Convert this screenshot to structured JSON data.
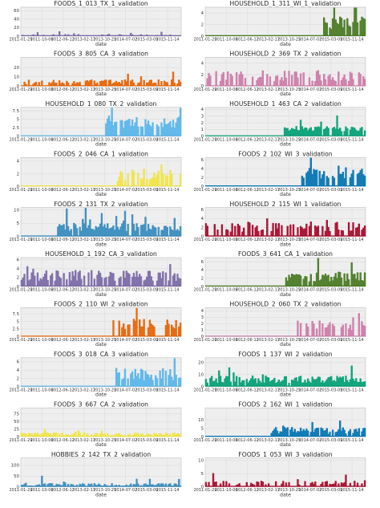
{
  "chart_data": [
    {
      "type": "bar",
      "title": "FOODS_1_013_TX_1_validation",
      "xlabel": "date",
      "ylabel": "",
      "color": "#7a68a6",
      "start": 0.0,
      "base": 1.0,
      "spread": 3.0,
      "peak": 8.0,
      "dens": 0.5,
      "yticks": [
        0,
        20,
        40,
        60
      ],
      "ylim": [
        0,
        68
      ]
    },
    {
      "type": "bar",
      "title": "HOUSEHOLD_1_311_WI_1_validation",
      "xlabel": "date",
      "ylabel": "",
      "color": "#467821",
      "start": 0.72,
      "base": 2.0,
      "spread": 1.5,
      "peak": 2.2,
      "dens": 0.85,
      "yticks": [
        0,
        2,
        4
      ],
      "ylim": [
        0,
        5
      ]
    },
    {
      "type": "bar",
      "title": "FOODS_3_805_CA_3_validation",
      "xlabel": "date",
      "ylabel": "",
      "color": "#e66101",
      "start": 0.0,
      "base": 4.0,
      "spread": 3.0,
      "peak": 3.0,
      "dens": 0.7,
      "yticks": [
        0,
        10,
        20
      ],
      "ylim": [
        0,
        31
      ]
    },
    {
      "type": "bar",
      "title": "HOUSEHOLD_2_369_TX_2_validation",
      "xlabel": "date",
      "ylabel": "",
      "color": "#cc79a7",
      "start": 0.0,
      "base": 1.5,
      "spread": 1.2,
      "peak": 1.8,
      "dens": 0.6,
      "yticks": [
        0,
        2,
        4
      ],
      "ylim": [
        0,
        5
      ]
    },
    {
      "type": "bar",
      "title": "HOUSEHOLD_1_080_TX_2_validation",
      "xlabel": "date",
      "ylabel": "",
      "color": "#56b4e9",
      "start": 0.52,
      "base": 3.5,
      "spread": 2.0,
      "peak": 1.8,
      "dens": 0.85,
      "yticks": [
        0,
        2.5,
        5,
        7.5
      ],
      "ylim": [
        0,
        8.5
      ]
    },
    {
      "type": "bar",
      "title": "HOUSEHOLD_1_463_CA_2_validation",
      "xlabel": "date",
      "ylabel": "",
      "color": "#009e73",
      "start": 0.49,
      "base": 1.0,
      "spread": 0.5,
      "peak": 2.8,
      "dens": 0.9,
      "yticks": [
        0,
        1,
        2,
        3,
        4
      ],
      "ylim": [
        0,
        4.3
      ]
    },
    {
      "type": "bar",
      "title": "FOODS_2_046_CA_1_validation",
      "xlabel": "date",
      "ylabel": "",
      "color": "#f0e442",
      "start": 0.6,
      "base": 1.5,
      "spread": 1.2,
      "peak": 1.8,
      "dens": 0.55,
      "yticks": [
        0,
        2,
        4
      ],
      "ylim": [
        0,
        4.6
      ]
    },
    {
      "type": "bar",
      "title": "FOODS_2_102_WI_3_validation",
      "xlabel": "date",
      "ylabel": "",
      "color": "#0072b2",
      "start": 0.6,
      "base": 2.5,
      "spread": 1.5,
      "peak": 1.8,
      "dens": 0.8,
      "yticks": [
        0,
        2,
        4,
        6
      ],
      "ylim": [
        0,
        6.5
      ]
    },
    {
      "type": "bar",
      "title": "FOODS_2_131_TX_2_validation",
      "xlabel": "date",
      "ylabel": "",
      "color": "#348abd",
      "start": 0.22,
      "base": 3.0,
      "spread": 2.0,
      "peak": 2.2,
      "dens": 0.9,
      "yticks": [
        0,
        5,
        10
      ],
      "ylim": [
        0,
        11
      ]
    },
    {
      "type": "bar",
      "title": "HOUSEHOLD_2_115_WI_1_validation",
      "xlabel": "date",
      "ylabel": "",
      "color": "#a60628",
      "start": 0.0,
      "base": 1.8,
      "spread": 1.4,
      "peak": 2.0,
      "dens": 0.55,
      "yticks": [
        0,
        2,
        4,
        6
      ],
      "ylim": [
        0,
        6.5
      ]
    },
    {
      "type": "bar",
      "title": "HOUSEHOLD_1_192_CA_3_validation",
      "xlabel": "date",
      "ylabel": "",
      "color": "#7a68a6",
      "start": 0.0,
      "base": 2.0,
      "spread": 1.6,
      "peak": 2.0,
      "dens": 0.75,
      "yticks": [
        0,
        2,
        4,
        6
      ],
      "ylim": [
        0,
        6.5
      ]
    },
    {
      "type": "bar",
      "title": "FOODS_3_641_CA_1_validation",
      "xlabel": "date",
      "ylabel": "",
      "color": "#467821",
      "start": 0.5,
      "base": 2.0,
      "spread": 1.5,
      "peak": 2.0,
      "dens": 0.85,
      "yticks": [
        0,
        2,
        4,
        6
      ],
      "ylim": [
        0,
        7
      ]
    },
    {
      "type": "bar",
      "title": "FOODS_2_110_WI_2_validation",
      "xlabel": "date",
      "ylabel": "",
      "color": "#e66101",
      "start": 0.55,
      "base": 3.5,
      "spread": 2.5,
      "peak": 1.8,
      "dens": 0.55,
      "yticks": [
        0,
        2.5,
        5,
        7.5
      ],
      "ylim": [
        0,
        9.5
      ]
    },
    {
      "type": "bar",
      "title": "HOUSEHOLD_2_060_TX_2_validation",
      "xlabel": "date",
      "ylabel": "",
      "color": "#cc79a7",
      "start": 0.55,
      "base": 1.5,
      "spread": 1.0,
      "peak": 2.0,
      "dens": 0.45,
      "yticks": [
        0,
        1,
        2,
        3,
        4
      ],
      "ylim": [
        0,
        4.5
      ]
    },
    {
      "type": "bar",
      "title": "FOODS_3_018_CA_3_validation",
      "xlabel": "date",
      "ylabel": "",
      "color": "#56b4e9",
      "start": 0.58,
      "base": 2.5,
      "spread": 2.0,
      "peak": 1.8,
      "dens": 0.75,
      "yticks": [
        0,
        2,
        4,
        6
      ],
      "ylim": [
        0,
        7
      ]
    },
    {
      "type": "bar",
      "title": "FOODS_1_137_WI_2_validation",
      "xlabel": "date",
      "ylabel": "",
      "color": "#009e73",
      "start": 0.0,
      "base": 5.0,
      "spread": 4.0,
      "peak": 2.0,
      "dens": 0.95,
      "yticks": [
        0,
        10,
        20
      ],
      "ylim": [
        0,
        24
      ]
    },
    {
      "type": "bar",
      "title": "FOODS_3_667_CA_2_validation",
      "xlabel": "date",
      "ylabel": "",
      "color": "#f0e442",
      "start": 0.0,
      "base": 7.0,
      "spread": 6.0,
      "peak": 2.5,
      "dens": 0.9,
      "yticks": [
        0,
        25,
        50,
        75
      ],
      "ylim": [
        0,
        95
      ]
    },
    {
      "type": "bar",
      "title": "FOODS_2_162_WI_1_validation",
      "xlabel": "date",
      "ylabel": "",
      "color": "#0072b2",
      "start": 0.4,
      "base": 3.0,
      "spread": 2.5,
      "peak": 2.2,
      "dens": 0.85,
      "yticks": [
        0,
        5,
        10
      ],
      "ylim": [
        0,
        17
      ]
    },
    {
      "type": "bar",
      "title": "HOBBIES_2_142_TX_2_validation",
      "xlabel": "date",
      "ylabel": "",
      "color": "#348abd",
      "start": 0.0,
      "base": 8.0,
      "spread": 8.0,
      "peak": 5.0,
      "dens": 0.85,
      "yticks": [
        0,
        50,
        100
      ],
      "ylim": [
        0,
        135
      ]
    },
    {
      "type": "bar",
      "title": "FOODS_1_053_WI_3_validation",
      "xlabel": "date",
      "ylabel": "",
      "color": "#a60628",
      "start": 0.0,
      "base": 1.2,
      "spread": 1.0,
      "peak": 3.0,
      "dens": 0.5,
      "yticks": [
        0,
        5,
        10
      ],
      "ylim": [
        0,
        11
      ]
    }
  ],
  "x_ticks": [
    "2011-01-29",
    "2011-10-06",
    "2012-06-12",
    "2013-02-17",
    "2013-10-25",
    "2014-07-02",
    "2015-03-09",
    "2015-11-14"
  ],
  "x_range": [
    "2011-01-29",
    "2016-04-24"
  ]
}
